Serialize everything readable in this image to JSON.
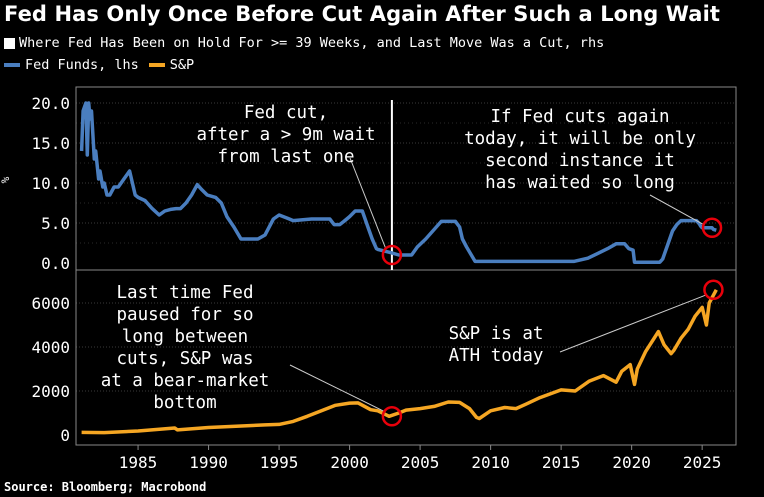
{
  "title": "Fed Has Only Once Before Cut Again After Such a Long Wait",
  "legend": {
    "hold_period": "Where Fed Has Been on Hold For >= 39 Weeks, and Last Move Was a Cut, rhs",
    "fed_funds": "Fed Funds, lhs",
    "sp": "S&P"
  },
  "source": "Source: Bloomberg; Macrobond",
  "colors": {
    "fed": "#4a7ebf",
    "sp": "#f5a623",
    "marker": "#e8000b",
    "hold": "#ffffff"
  },
  "annotations": [
    "Fed cut,",
    "after a > 9m wait",
    "from last one",
    "If Fed cuts again",
    "today, it will be only",
    "second instance it",
    "has waited so long",
    "Last time Fed",
    "paused for so",
    "long between",
    "cuts, S&P was",
    "at a bear-market",
    "bottom",
    "S&P is at",
    "ATH today"
  ],
  "chart_data": [
    {
      "type": "line",
      "name": "Fed Funds",
      "ylabel": "%",
      "xlim": [
        1980.6,
        2027.4
      ],
      "ylim": [
        0,
        21
      ],
      "yticks": [
        "0.0",
        "5.0",
        "10.0",
        "15.0",
        "20.0"
      ],
      "hold_marker_x": 2003.0,
      "series": [
        {
          "name": "Fed Funds, lhs",
          "x": [
            1981.0,
            1981.1,
            1981.3,
            1981.4,
            1981.5,
            1981.6,
            1981.7,
            1981.9,
            1982.0,
            1982.2,
            1982.3,
            1982.5,
            1982.6,
            1982.8,
            1983.0,
            1983.3,
            1983.6,
            1984.0,
            1984.4,
            1984.8,
            1985.0,
            1985.5,
            1986.0,
            1986.5,
            1986.9,
            1987.3,
            1987.7,
            1988.0,
            1988.4,
            1988.8,
            1989.2,
            1989.5,
            1989.9,
            1990.5,
            1990.9,
            1991.3,
            1991.8,
            1992.3,
            1992.8,
            1993.5,
            1994.0,
            1994.3,
            1994.6,
            1995.0,
            1995.6,
            1996.0,
            1997.3,
            1998.6,
            1998.9,
            1999.3,
            1999.6,
            2000.0,
            2000.4,
            2000.9,
            2001.1,
            2001.3,
            2001.6,
            2001.9,
            2002.0,
            2002.9,
            2003.5,
            2004.4,
            2004.8,
            2005.4,
            2005.9,
            2006.5,
            2007.5,
            2007.8,
            2008.0,
            2008.3,
            2008.9,
            2009.5,
            2015.9,
            2016.9,
            2017.6,
            2018.3,
            2018.9,
            2019.5,
            2019.8,
            2020.1,
            2020.2,
            2022.0,
            2022.2,
            2022.4,
            2022.7,
            2022.9,
            2023.2,
            2023.5,
            2024.6,
            2024.8,
            2024.9,
            2025.0,
            2025.7,
            2025.8,
            2026.0
          ],
          "values": [
            14,
            19,
            20,
            13.5,
            20,
            18,
            19,
            13,
            14,
            10.5,
            11.5,
            9.5,
            10,
            8.5,
            8.5,
            9.5,
            9.5,
            10.5,
            11.5,
            8.5,
            8.2,
            7.8,
            6.8,
            6,
            6.5,
            6.7,
            6.8,
            6.8,
            7.5,
            8.5,
            9.8,
            9.2,
            8.5,
            8.2,
            7.5,
            5.8,
            4.5,
            3,
            3,
            3,
            3.5,
            4.5,
            5.5,
            6,
            5.6,
            5.3,
            5.5,
            5.5,
            4.8,
            4.8,
            5.2,
            5.8,
            6.5,
            6.5,
            5.5,
            4.5,
            3,
            1.8,
            1.7,
            1.3,
            1,
            1,
            2,
            3,
            4,
            5.2,
            5.2,
            4.5,
            3,
            2,
            0.2,
            0.2,
            0.2,
            0.6,
            1.2,
            1.8,
            2.4,
            2.4,
            1.8,
            1.6,
            0.1,
            0.1,
            0.5,
            1.5,
            3,
            4,
            4.8,
            5.3,
            5.3,
            4.9,
            4.6,
            4.4,
            4.4,
            4.2,
            4.1
          ]
        }
      ]
    },
    {
      "type": "line",
      "name": "S&P",
      "xlim": [
        1980.6,
        2027.4
      ],
      "ylim": [
        0,
        7000
      ],
      "yticks": [
        "0",
        "2000",
        "4000",
        "6000"
      ],
      "xticks": [
        "1985",
        "1990",
        "1995",
        "2000",
        "2005",
        "2010",
        "2015",
        "2020",
        "2025"
      ],
      "xtick_values": [
        1985,
        1990,
        1995,
        2000,
        2005,
        2010,
        2015,
        2020,
        2025
      ],
      "series": [
        {
          "name": "S&P",
          "x": [
            1981.0,
            1982.6,
            1985.0,
            1987.6,
            1987.8,
            1990.0,
            1994.0,
            1995.0,
            1996.0,
            1997.0,
            1998.0,
            1999.0,
            2000.0,
            2000.6,
            2001.5,
            2002.0,
            2002.8,
            2003.5,
            2004.0,
            2005.0,
            2006.0,
            2007.0,
            2007.8,
            2008.5,
            2009.0,
            2009.2,
            2010.0,
            2011.0,
            2011.8,
            2012.5,
            2013.5,
            2015.0,
            2016.0,
            2017.0,
            2018.0,
            2018.9,
            2019.3,
            2019.9,
            2020.2,
            2020.4,
            2021.0,
            2021.9,
            2022.3,
            2022.8,
            2023.0,
            2023.5,
            2024.0,
            2024.5,
            2025.0,
            2025.3,
            2025.5,
            2026.0
          ],
          "values": [
            120,
            110,
            180,
            320,
            230,
            340,
            460,
            480,
            620,
            850,
            1100,
            1350,
            1450,
            1460,
            1150,
            1100,
            850,
            1000,
            1130,
            1200,
            1300,
            1500,
            1480,
            1200,
            800,
            750,
            1100,
            1250,
            1200,
            1400,
            1700,
            2050,
            2000,
            2450,
            2700,
            2400,
            2900,
            3200,
            2300,
            3000,
            3800,
            4700,
            4100,
            3700,
            3850,
            4400,
            4800,
            5400,
            5800,
            5000,
            6000,
            6600
          ]
        }
      ]
    }
  ]
}
